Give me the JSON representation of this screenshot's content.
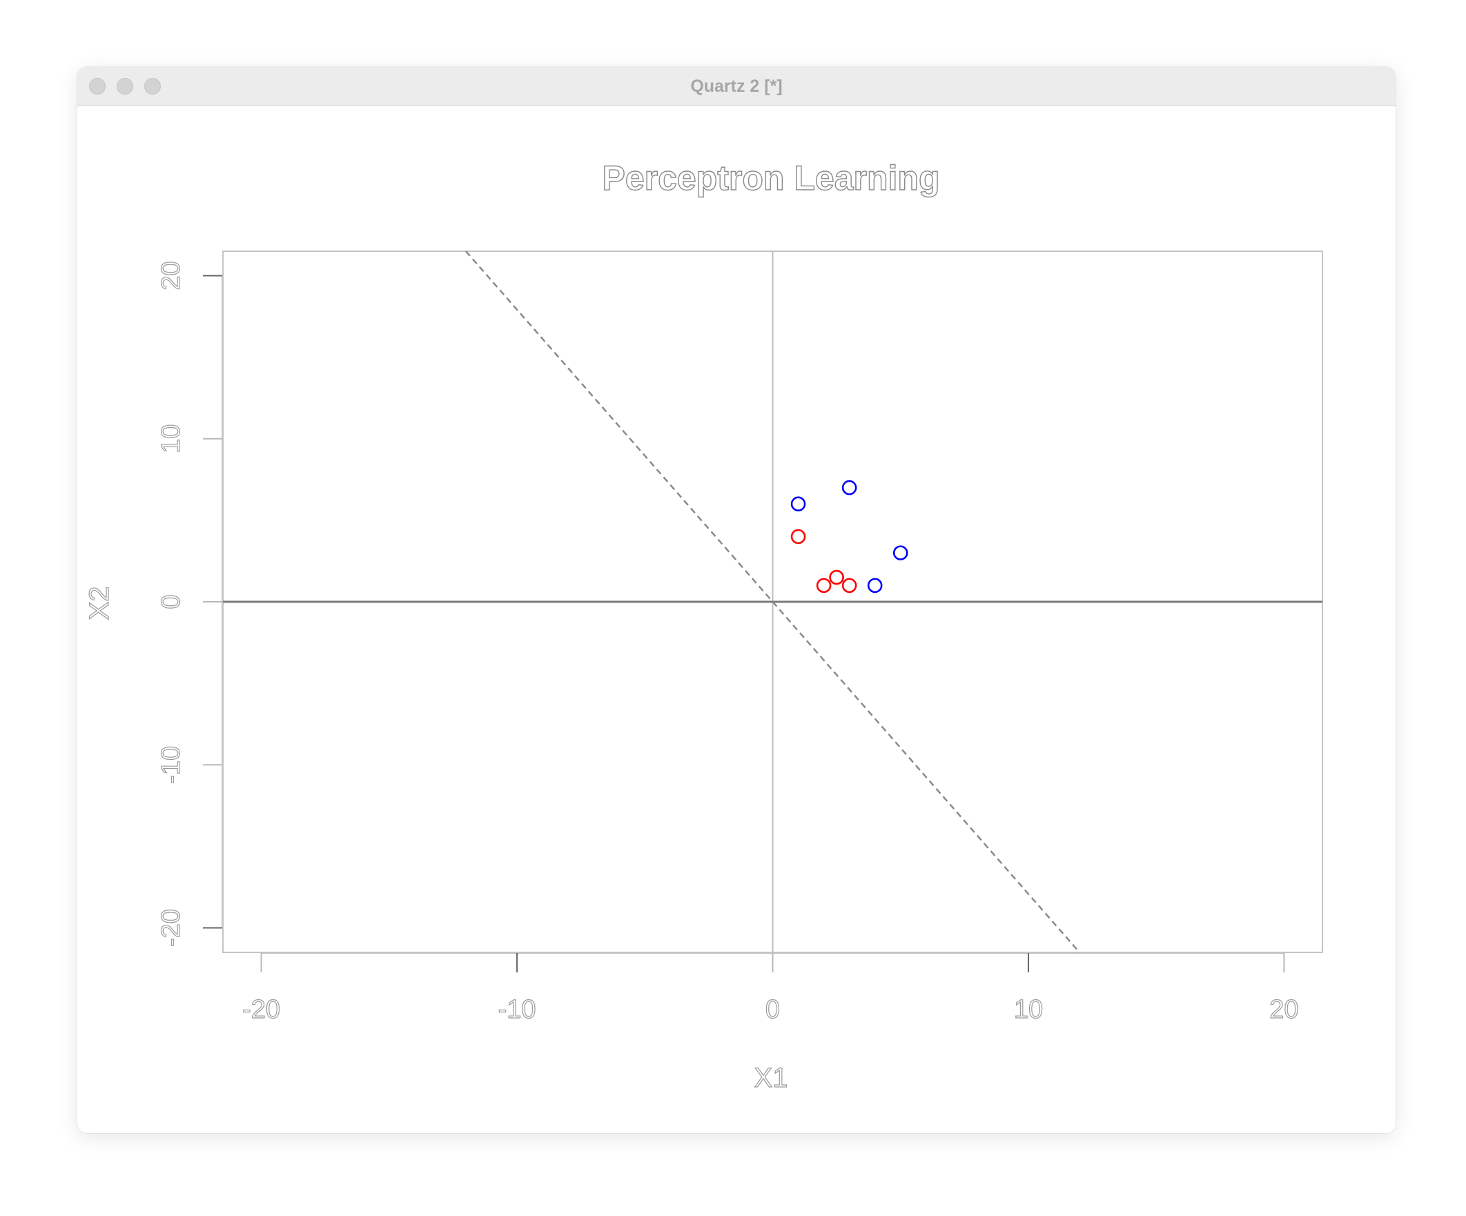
{
  "window": {
    "title": "Quartz 2 [*]"
  },
  "chart_data": {
    "type": "scatter",
    "title": "Perceptron Learning",
    "xlabel": "X1",
    "ylabel": "X2",
    "xlim": [
      -21.5,
      21.5
    ],
    "ylim": [
      -21.5,
      21.5
    ],
    "x_ticks": [
      -20,
      -10,
      0,
      10,
      20
    ],
    "y_ticks": [
      -20,
      -10,
      0,
      10,
      20
    ],
    "x_tick_labels": [
      "-20",
      "-10",
      "0",
      "10",
      "20"
    ],
    "y_tick_labels": [
      "-20",
      "-10",
      "0",
      "10",
      "20"
    ],
    "grid": false,
    "reference_lines": [
      {
        "orientation": "vertical",
        "value": 0
      },
      {
        "orientation": "horizontal",
        "value": 0
      }
    ],
    "decision_boundary": {
      "style": "dashed",
      "color": "#8a8a8a",
      "points": [
        [
          -12,
          21.5
        ],
        [
          12,
          -21.5
        ]
      ]
    },
    "series": [
      {
        "color": "#ff0000",
        "marker": "open-circle",
        "points": [
          [
            1,
            4
          ],
          [
            2,
            1
          ],
          [
            2.5,
            1.5
          ],
          [
            3,
            1
          ]
        ]
      },
      {
        "color": "#0000ff",
        "marker": "open-circle",
        "points": [
          [
            1,
            6
          ],
          [
            3,
            7
          ],
          [
            5,
            3
          ],
          [
            4,
            1
          ]
        ]
      }
    ]
  }
}
